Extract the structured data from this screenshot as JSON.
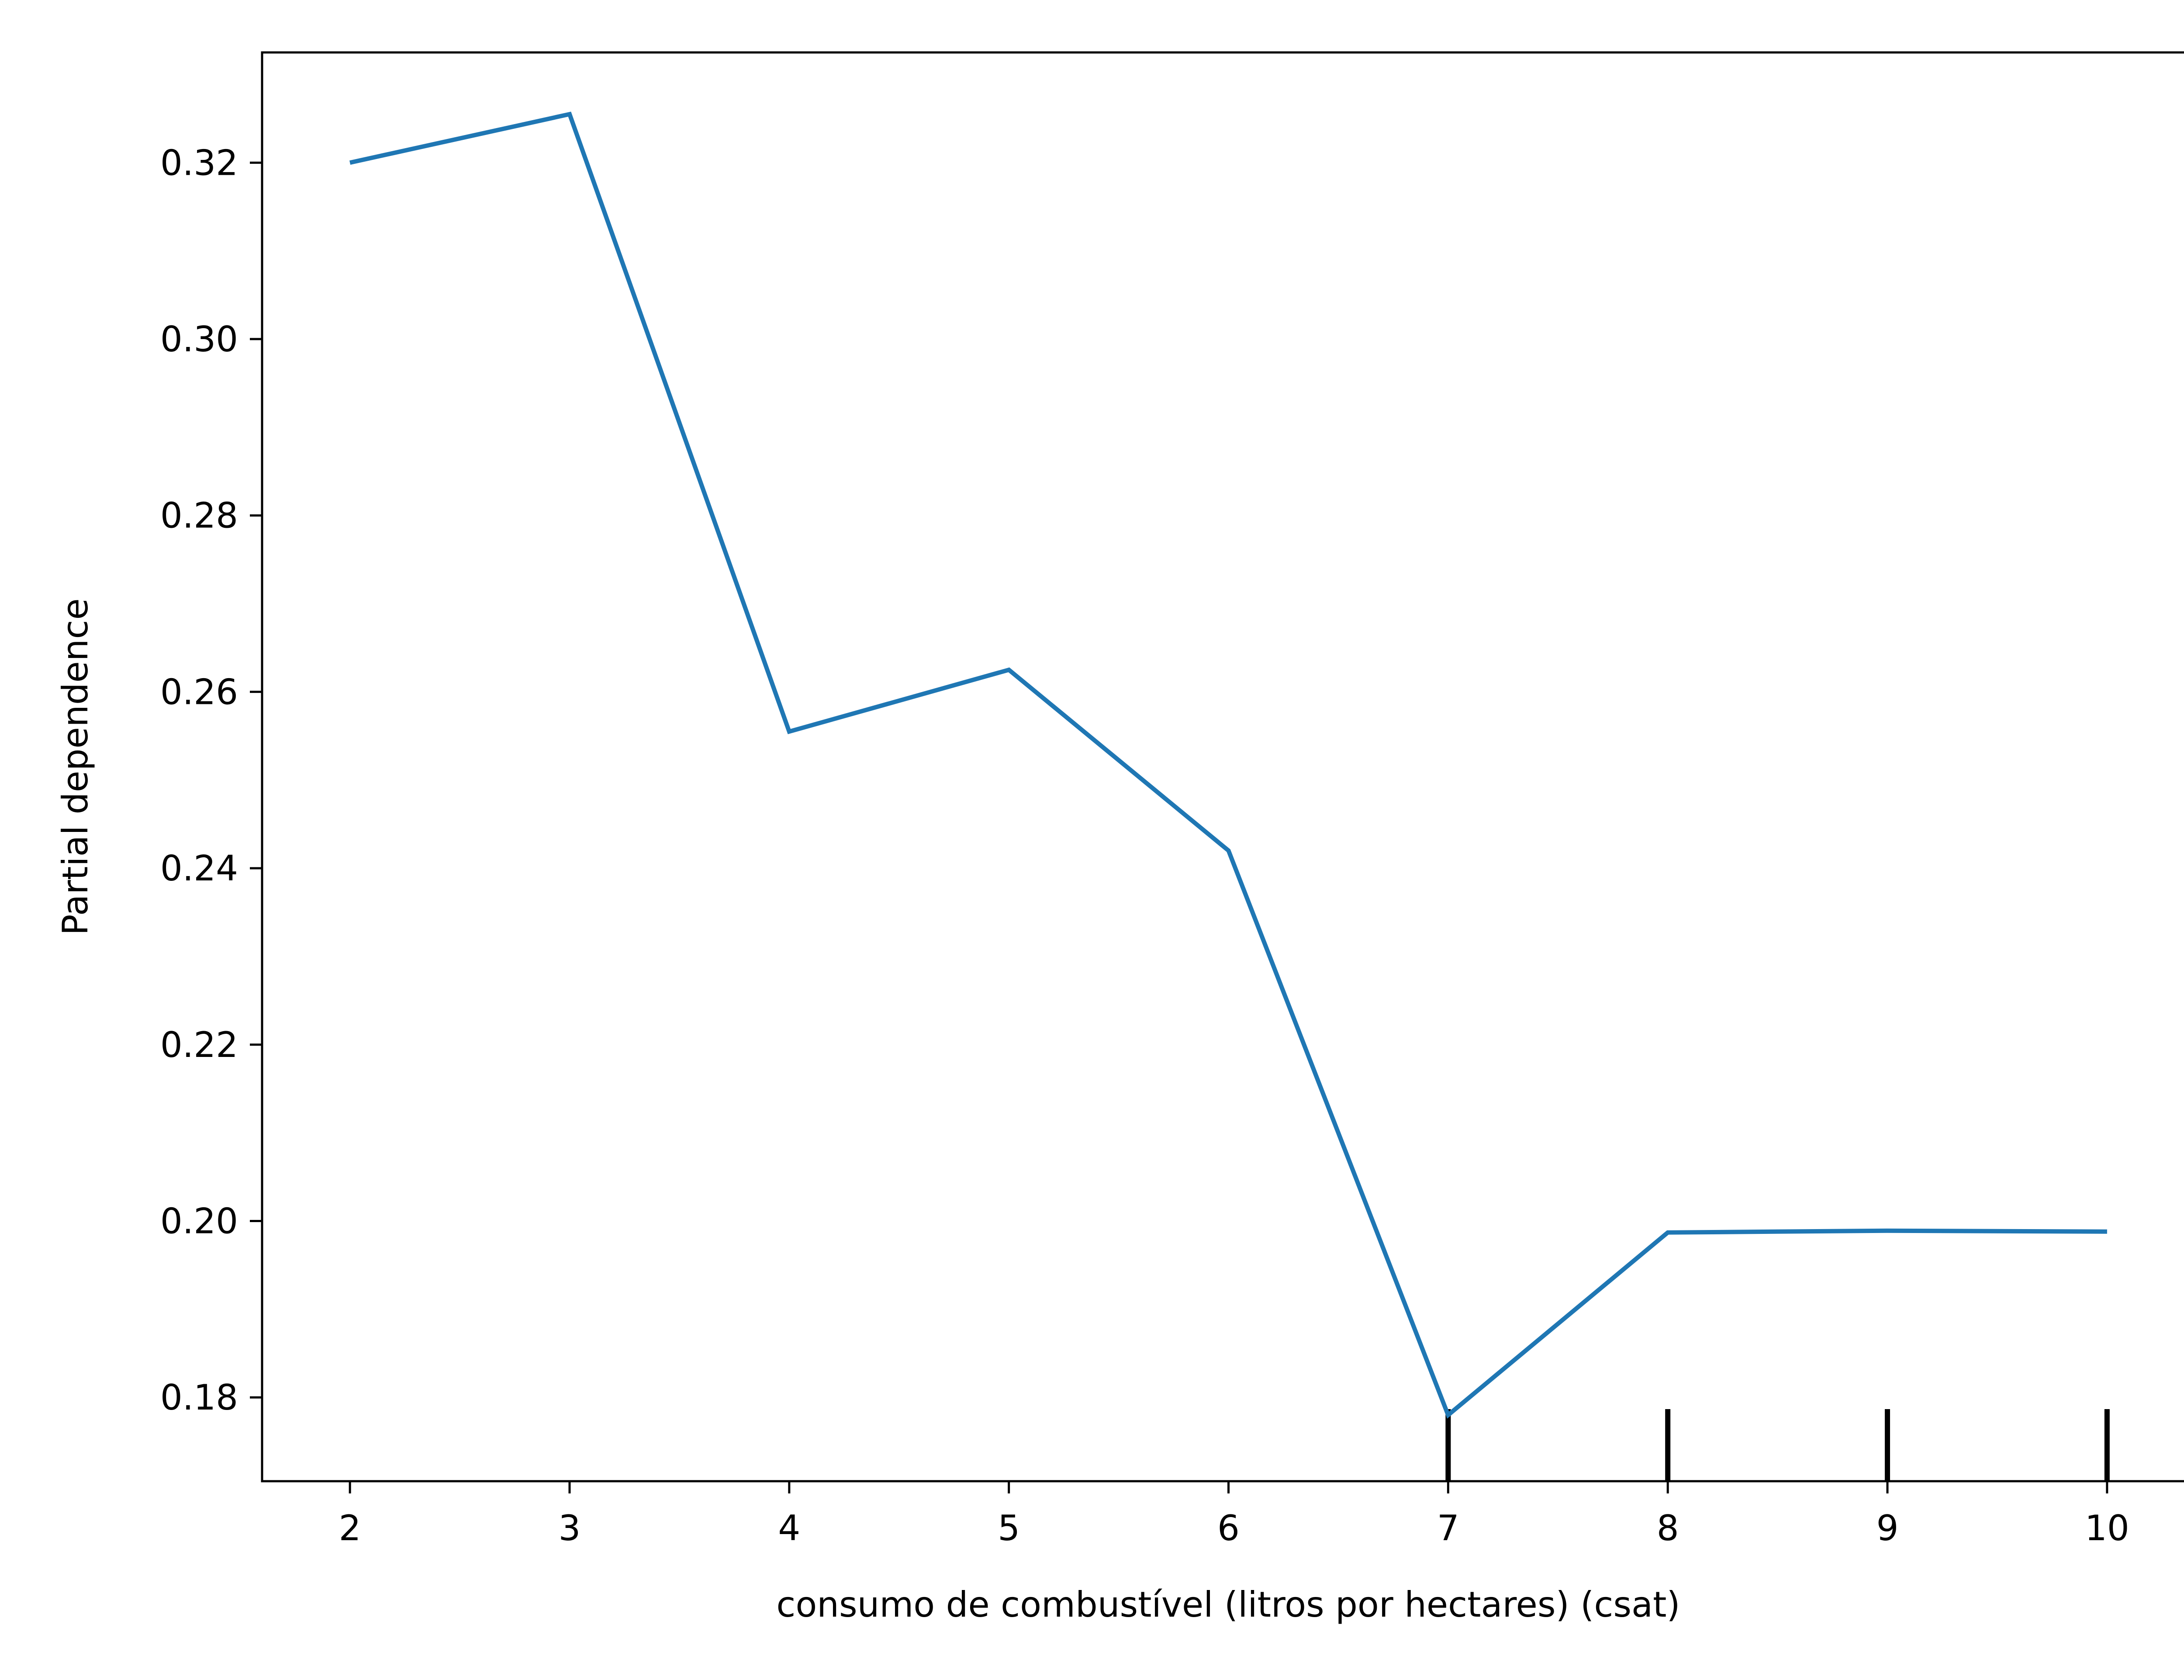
{
  "chart_data": {
    "type": "line",
    "title": "",
    "xlabel": "consumo de combustível (litros por hectares) (csat)",
    "ylabel": "Partial dependence",
    "x": [
      2,
      3,
      4,
      5,
      6,
      7,
      8,
      9,
      10
    ],
    "series": [
      {
        "values": [
          0.32,
          0.3255,
          0.2555,
          0.2625,
          0.242,
          0.178,
          0.1987,
          0.1989,
          0.1988
        ],
        "color": "#1f77b4"
      }
    ],
    "xlim": [
      1.6,
      10.4
    ],
    "ylim": [
      0.1705,
      0.3325
    ],
    "x_ticks": [
      2,
      3,
      4,
      5,
      6,
      7,
      8,
      9,
      10
    ],
    "x_tick_labels": [
      "2",
      "3",
      "4",
      "5",
      "6",
      "7",
      "8",
      "9",
      "10"
    ],
    "y_ticks": [
      0.18,
      0.2,
      0.22,
      0.24,
      0.26,
      0.28,
      0.3,
      0.32
    ],
    "y_tick_labels": [
      "0.18",
      "0.20",
      "0.22",
      "0.24",
      "0.26",
      "0.28",
      "0.30",
      "0.32"
    ],
    "rug_x": [
      7,
      8,
      9,
      10
    ],
    "grid": false,
    "legend": "none"
  }
}
